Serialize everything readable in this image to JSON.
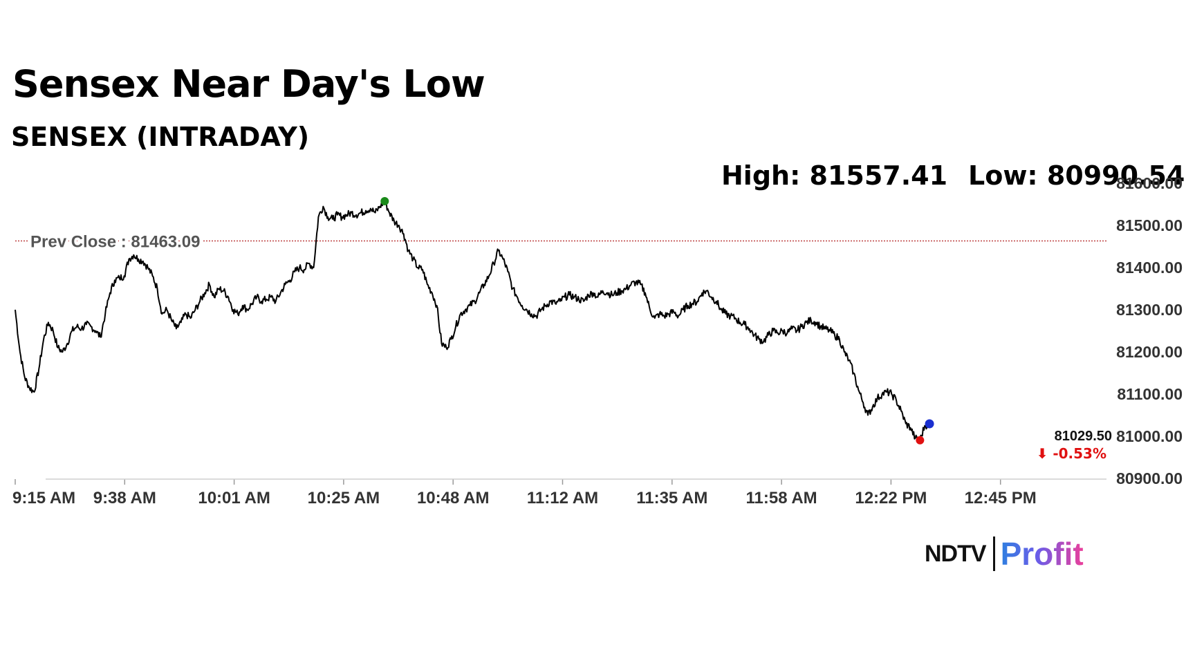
{
  "headline": "Sensex Near Day's Low",
  "subheading": "SENSEX (INTRADAY)",
  "high_label": "High: 81557.41",
  "low_label": "Low: 80990.54",
  "brand": {
    "left": "NDTV",
    "right": "Profit"
  },
  "colors": {
    "line": "#000000",
    "prev_close_line": "#b22222",
    "high_marker": "#1a8a1a",
    "low_marker": "#e01010",
    "last_marker": "#1a2fd0",
    "change_negative": "#e01010",
    "axis_text": "#333333"
  },
  "chart_data": {
    "type": "line",
    "title": "SENSEX (INTRADAY)",
    "xlabel": "",
    "ylabel": "",
    "ylim": [
      80900,
      81600
    ],
    "yticks": [
      "81600.00",
      "81500.00",
      "81400.00",
      "81300.00",
      "81200.00",
      "81100.00",
      "81000.00",
      "80900.00"
    ],
    "xticks": [
      "9:15 AM",
      "9:38 AM",
      "10:01 AM",
      "10:25 AM",
      "10:48 AM",
      "11:12 AM",
      "11:35 AM",
      "11:58 AM",
      "12:22 PM",
      "12:45 PM"
    ],
    "prev_close": {
      "label": "Prev Close : 81463.09",
      "value": 81463.09
    },
    "high": 81557.41,
    "low": 80990.54,
    "last": {
      "value_label": "81029.50",
      "change_label": "⬇ -0.53%",
      "value": 81029.5
    },
    "grid": false,
    "series": [
      {
        "points": [
          [
            "9:15",
            81300
          ],
          [
            "9:16",
            81200
          ],
          [
            "9:17",
            81140
          ],
          [
            "9:18",
            81115
          ],
          [
            "9:19",
            81105
          ],
          [
            "9:20",
            81160
          ],
          [
            "9:21",
            81230
          ],
          [
            "9:22",
            81270
          ],
          [
            "9:23",
            81250
          ],
          [
            "9:24",
            81210
          ],
          [
            "9:25",
            81200
          ],
          [
            "9:26",
            81220
          ],
          [
            "9:27",
            81250
          ],
          [
            "9:28",
            81260
          ],
          [
            "9:29",
            81255
          ],
          [
            "9:30",
            81265
          ],
          [
            "9:31",
            81260
          ],
          [
            "9:32",
            81250
          ],
          [
            "9:33",
            81235
          ],
          [
            "9:34",
            81290
          ],
          [
            "9:35",
            81340
          ],
          [
            "9:36",
            81370
          ],
          [
            "9:37",
            81375
          ],
          [
            "9:38",
            81380
          ],
          [
            "9:39",
            81420
          ],
          [
            "9:40",
            81430
          ],
          [
            "9:41",
            81420
          ],
          [
            "9:42",
            81415
          ],
          [
            "9:43",
            81400
          ],
          [
            "9:44",
            81380
          ],
          [
            "9:45",
            81350
          ],
          [
            "9:46",
            81290
          ],
          [
            "9:47",
            81300
          ],
          [
            "9:48",
            81275
          ],
          [
            "9:49",
            81255
          ],
          [
            "9:50",
            81270
          ],
          [
            "9:51",
            81290
          ],
          [
            "9:52",
            81280
          ],
          [
            "9:53",
            81300
          ],
          [
            "9:54",
            81320
          ],
          [
            "9:55",
            81340
          ],
          [
            "9:56",
            81360
          ],
          [
            "9:57",
            81330
          ],
          [
            "9:58",
            81350
          ],
          [
            "9:59",
            81345
          ],
          [
            "10:00",
            81330
          ],
          [
            "10:01",
            81300
          ],
          [
            "10:02",
            81290
          ],
          [
            "10:03",
            81310
          ],
          [
            "10:04",
            81300
          ],
          [
            "10:05",
            81315
          ],
          [
            "10:06",
            81330
          ],
          [
            "10:07",
            81320
          ],
          [
            "10:08",
            81325
          ],
          [
            "10:09",
            81330
          ],
          [
            "10:10",
            81320
          ],
          [
            "10:11",
            81340
          ],
          [
            "10:12",
            81360
          ],
          [
            "10:13",
            81370
          ],
          [
            "10:14",
            81390
          ],
          [
            "10:15",
            81400
          ],
          [
            "10:16",
            81395
          ],
          [
            "10:17",
            81410
          ],
          [
            "10:18",
            81400
          ],
          [
            "10:19",
            81520
          ],
          [
            "10:20",
            81545
          ],
          [
            "10:21",
            81520
          ],
          [
            "10:22",
            81515
          ],
          [
            "10:23",
            81525
          ],
          [
            "10:24",
            81520
          ],
          [
            "10:25",
            81525
          ],
          [
            "10:26",
            81530
          ],
          [
            "10:27",
            81525
          ],
          [
            "10:28",
            81530
          ],
          [
            "10:29",
            81535
          ],
          [
            "10:30",
            81540
          ],
          [
            "10:31",
            81530
          ],
          [
            "10:32",
            81545
          ],
          [
            "10:33",
            81557.41
          ],
          [
            "10:34",
            81530
          ],
          [
            "10:35",
            81510
          ],
          [
            "10:36",
            81500
          ],
          [
            "10:37",
            81480
          ],
          [
            "10:38",
            81440
          ],
          [
            "10:39",
            81420
          ],
          [
            "10:40",
            81400
          ],
          [
            "10:41",
            81395
          ],
          [
            "10:42",
            81360
          ],
          [
            "10:43",
            81340
          ],
          [
            "10:44",
            81310
          ],
          [
            "10:45",
            81220
          ],
          [
            "10:46",
            81210
          ],
          [
            "10:47",
            81230
          ],
          [
            "10:48",
            81260
          ],
          [
            "10:49",
            81290
          ],
          [
            "10:50",
            81300
          ],
          [
            "10:51",
            81310
          ],
          [
            "10:52",
            81320
          ],
          [
            "10:53",
            81340
          ],
          [
            "10:54",
            81360
          ],
          [
            "10:55",
            81380
          ],
          [
            "10:56",
            81410
          ],
          [
            "10:57",
            81440
          ],
          [
            "10:58",
            81420
          ],
          [
            "10:59",
            81390
          ],
          [
            "11:00",
            81350
          ],
          [
            "11:01",
            81330
          ],
          [
            "11:02",
            81310
          ],
          [
            "11:03",
            81300
          ],
          [
            "11:04",
            81290
          ],
          [
            "11:05",
            81285
          ],
          [
            "11:06",
            81300
          ],
          [
            "11:07",
            81310
          ],
          [
            "11:08",
            81320
          ],
          [
            "11:09",
            81315
          ],
          [
            "11:10",
            81320
          ],
          [
            "11:11",
            81330
          ],
          [
            "11:12",
            81335
          ],
          [
            "11:13",
            81330
          ],
          [
            "11:14",
            81325
          ],
          [
            "11:15",
            81320
          ],
          [
            "11:16",
            81335
          ],
          [
            "11:17",
            81340
          ],
          [
            "11:18",
            81330
          ],
          [
            "11:19",
            81345
          ],
          [
            "11:20",
            81340
          ],
          [
            "11:21",
            81335
          ],
          [
            "11:22",
            81340
          ],
          [
            "11:23",
            81345
          ],
          [
            "11:24",
            81350
          ],
          [
            "11:25",
            81360
          ],
          [
            "11:26",
            81365
          ],
          [
            "11:27",
            81360
          ],
          [
            "11:28",
            81340
          ],
          [
            "11:29",
            81300
          ],
          [
            "11:30",
            81280
          ],
          [
            "11:31",
            81290
          ],
          [
            "11:32",
            81285
          ],
          [
            "11:33",
            81290
          ],
          [
            "11:34",
            81295
          ],
          [
            "11:35",
            81285
          ],
          [
            "11:36",
            81300
          ],
          [
            "11:37",
            81310
          ],
          [
            "11:38",
            81315
          ],
          [
            "11:39",
            81320
          ],
          [
            "11:40",
            81340
          ],
          [
            "11:41",
            81345
          ],
          [
            "11:42",
            81330
          ],
          [
            "11:43",
            81320
          ],
          [
            "11:44",
            81300
          ],
          [
            "11:45",
            81290
          ],
          [
            "11:46",
            81285
          ],
          [
            "11:47",
            81280
          ],
          [
            "11:48",
            81270
          ],
          [
            "11:49",
            81265
          ],
          [
            "11:50",
            81255
          ],
          [
            "11:51",
            81240
          ],
          [
            "11:52",
            81230
          ],
          [
            "11:53",
            81225
          ],
          [
            "11:54",
            81240
          ],
          [
            "11:55",
            81250
          ],
          [
            "11:56",
            81245
          ],
          [
            "11:57",
            81250
          ],
          [
            "11:58",
            81245
          ],
          [
            "11:59",
            81255
          ],
          [
            "12:00",
            81250
          ],
          [
            "12:01",
            81260
          ],
          [
            "12:02",
            81270
          ],
          [
            "12:03",
            81275
          ],
          [
            "12:04",
            81270
          ],
          [
            "12:05",
            81260
          ],
          [
            "12:06",
            81255
          ],
          [
            "12:07",
            81250
          ],
          [
            "12:08",
            81240
          ],
          [
            "12:09",
            81230
          ],
          [
            "12:10",
            81200
          ],
          [
            "12:11",
            81180
          ],
          [
            "12:12",
            81150
          ],
          [
            "12:13",
            81110
          ],
          [
            "12:14",
            81080
          ],
          [
            "12:15",
            81050
          ],
          [
            "12:16",
            81070
          ],
          [
            "12:17",
            81090
          ],
          [
            "12:18",
            81100
          ],
          [
            "12:19",
            81105
          ],
          [
            "12:20",
            81100
          ],
          [
            "12:21",
            81085
          ],
          [
            "12:22",
            81060
          ],
          [
            "12:23",
            81030
          ],
          [
            "12:24",
            81020
          ],
          [
            "12:25",
            80995
          ],
          [
            "12:26",
            80990.54
          ],
          [
            "12:27",
            81025
          ],
          [
            "12:28",
            81029.5
          ]
        ]
      }
    ]
  }
}
